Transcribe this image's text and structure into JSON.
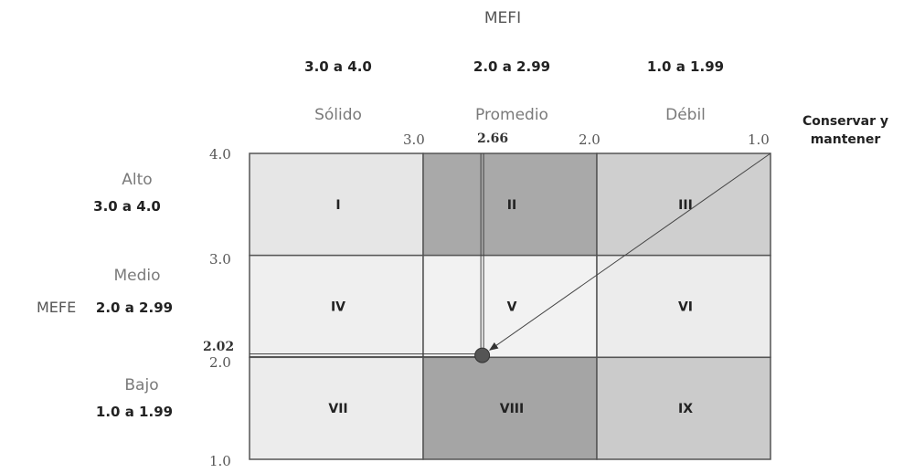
{
  "axis_x": {
    "title": "MEFI",
    "columns": [
      {
        "range": "3.0 a 4.0",
        "level": "Sólido"
      },
      {
        "range": "2.0 a 2.99",
        "level": "Promedio"
      },
      {
        "range": "1.0 a 1.99",
        "level": "Débil"
      }
    ],
    "ticks": [
      "3.0",
      "2.0",
      "1.0"
    ]
  },
  "axis_y": {
    "title": "MEFE",
    "rows": [
      {
        "level": "Alto",
        "range": "3.0 a 4.0"
      },
      {
        "level": "Medio",
        "range": "2.0 a 2.99"
      },
      {
        "level": "Bajo",
        "range": "1.0 a 1.99"
      }
    ],
    "ticks": [
      "4.0",
      "3.0",
      "2.0",
      "1.0"
    ]
  },
  "cells": [
    {
      "label": "I",
      "color": "#e6e6e6"
    },
    {
      "label": "II",
      "color": "#a9a9a9"
    },
    {
      "label": "III",
      "color": "#cfcfcf"
    },
    {
      "label": "IV",
      "color": "#efefef"
    },
    {
      "label": "V",
      "color": "#f2f2f2"
    },
    {
      "label": "VI",
      "color": "#ececec"
    },
    {
      "label": "VII",
      "color": "#ececec"
    },
    {
      "label": "VIII",
      "color": "#a5a5a5"
    },
    {
      "label": "IX",
      "color": "#cbcbcb"
    }
  ],
  "point": {
    "mefi": 2.66,
    "mefe": 2.02,
    "mefi_label": "2.66",
    "mefe_label": "2.02"
  },
  "callout": "Conservar y mantener"
}
